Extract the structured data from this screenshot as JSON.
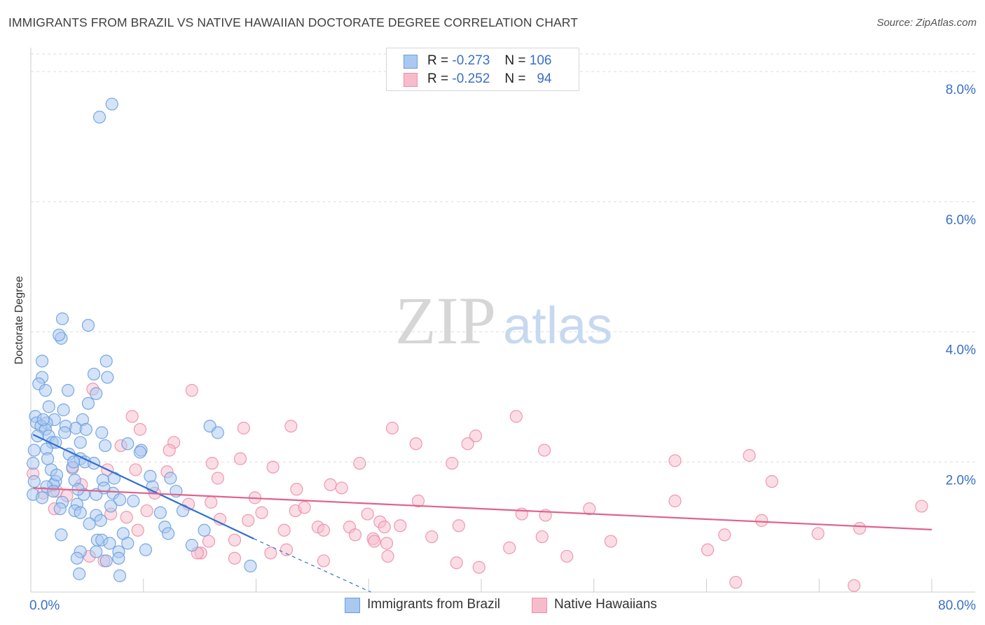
{
  "title": "IMMIGRANTS FROM BRAZIL VS NATIVE HAWAIIAN DOCTORATE DEGREE CORRELATION CHART",
  "source": "Source: ZipAtlas.com",
  "watermark": {
    "zip": "ZIP",
    "atlas": "atlas"
  },
  "legend": {
    "series1": {
      "r_label": "R =",
      "r_value": "-0.273",
      "n_label": "N =",
      "n_value": "106"
    },
    "series2": {
      "r_label": "R =",
      "r_value": "-0.252",
      "n_label": "N =",
      "n_value": "94"
    }
  },
  "colors": {
    "blue_fill": "#aac8f0",
    "blue_stroke": "#6a9ee0",
    "blue_line": "#2f6fd0",
    "pink_fill": "#f7bccb",
    "pink_stroke": "#ec8fa8",
    "pink_line": "#e0628a",
    "axis_text": "#3a6fc8",
    "grid": "#dddddd"
  },
  "chart_data": {
    "type": "scatter",
    "title": "IMMIGRANTS FROM BRAZIL VS NATIVE HAWAIIAN DOCTORATE DEGREE CORRELATION CHART",
    "xlabel": "",
    "ylabel": "Doctorate Degree",
    "xlim": [
      0,
      80
    ],
    "ylim": [
      0,
      8.4
    ],
    "x_tick_labels": [
      "0.0%",
      "80.0%"
    ],
    "y_ticks": [
      2,
      4,
      6,
      8
    ],
    "y_tick_labels": [
      "2.0%",
      "4.0%",
      "6.0%",
      "8.0%"
    ],
    "grid": true,
    "legend_position": "top-center",
    "series": [
      {
        "name": "Immigrants from Brazil",
        "color": "blue",
        "trend": {
          "x0": 0.2,
          "y0": 2.42,
          "x1": 19.8,
          "y1": 0.82,
          "dash_x1": 30.2,
          "dash_y1": 0.0
        },
        "points": [
          [
            7.2,
            7.5
          ],
          [
            6.1,
            7.3
          ],
          [
            2.8,
            4.2
          ],
          [
            5.1,
            4.1
          ],
          [
            2.7,
            3.9
          ],
          [
            2.5,
            3.95
          ],
          [
            1.0,
            3.55
          ],
          [
            6.7,
            3.55
          ],
          [
            5.6,
            3.35
          ],
          [
            1.0,
            3.3
          ],
          [
            6.8,
            3.3
          ],
          [
            0.7,
            3.2
          ],
          [
            1.3,
            3.1
          ],
          [
            3.3,
            3.1
          ],
          [
            5.8,
            3.05
          ],
          [
            5.1,
            2.9
          ],
          [
            1.6,
            2.85
          ],
          [
            2.9,
            2.8
          ],
          [
            0.4,
            2.7
          ],
          [
            2.1,
            2.65
          ],
          [
            4.6,
            2.65
          ],
          [
            0.5,
            2.6
          ],
          [
            1.4,
            2.6
          ],
          [
            0.9,
            2.55
          ],
          [
            1.3,
            2.5
          ],
          [
            3.1,
            2.55
          ],
          [
            4.0,
            2.52
          ],
          [
            4.9,
            2.5
          ],
          [
            6.3,
            2.45
          ],
          [
            15.9,
            2.55
          ],
          [
            16.6,
            2.45
          ],
          [
            0.6,
            2.4
          ],
          [
            1.6,
            2.4
          ],
          [
            1.9,
            2.3
          ],
          [
            2.2,
            2.3
          ],
          [
            4.4,
            2.3
          ],
          [
            6.6,
            2.25
          ],
          [
            8.6,
            2.28
          ],
          [
            1.4,
            2.2
          ],
          [
            0.3,
            2.18
          ],
          [
            9.8,
            2.18
          ],
          [
            9.7,
            2.15
          ],
          [
            3.4,
            2.12
          ],
          [
            1.5,
            2.05
          ],
          [
            4.4,
            2.05
          ],
          [
            4.8,
            2.0
          ],
          [
            5.6,
            1.98
          ],
          [
            0.2,
            1.98
          ],
          [
            3.7,
            1.92
          ],
          [
            1.8,
            1.88
          ],
          [
            6.4,
            1.72
          ],
          [
            10.6,
            1.78
          ],
          [
            12.4,
            1.75
          ],
          [
            7.4,
            1.75
          ],
          [
            2.2,
            1.7
          ],
          [
            3.9,
            1.72
          ],
          [
            2.0,
            1.65
          ],
          [
            1.4,
            1.62
          ],
          [
            10.8,
            1.62
          ],
          [
            7.3,
            1.52
          ],
          [
            0.2,
            1.5
          ],
          [
            4.7,
            1.5
          ],
          [
            5.8,
            1.5
          ],
          [
            1.0,
            1.45
          ],
          [
            7.9,
            1.42
          ],
          [
            2.8,
            1.38
          ],
          [
            4.1,
            1.35
          ],
          [
            7.1,
            1.32
          ],
          [
            2.6,
            1.28
          ],
          [
            3.9,
            1.25
          ],
          [
            4.4,
            1.22
          ],
          [
            11.5,
            1.22
          ],
          [
            13.5,
            1.25
          ],
          [
            5.8,
            1.18
          ],
          [
            6.2,
            1.1
          ],
          [
            5.2,
            1.05
          ],
          [
            11.9,
            1.0
          ],
          [
            15.4,
            0.95
          ],
          [
            8.2,
            0.9
          ],
          [
            12.2,
            0.9
          ],
          [
            2.7,
            0.88
          ],
          [
            5.9,
            0.8
          ],
          [
            6.3,
            0.8
          ],
          [
            7.0,
            0.75
          ],
          [
            8.6,
            0.75
          ],
          [
            14.3,
            0.72
          ],
          [
            4.4,
            0.62
          ],
          [
            5.8,
            0.62
          ],
          [
            7.8,
            0.62
          ],
          [
            10.2,
            0.65
          ],
          [
            4.1,
            0.52
          ],
          [
            6.7,
            0.48
          ],
          [
            7.8,
            0.52
          ],
          [
            19.5,
            0.4
          ],
          [
            4.3,
            0.28
          ],
          [
            7.9,
            0.25
          ],
          [
            0.3,
            1.7
          ],
          [
            2.3,
            1.8
          ],
          [
            3.8,
            2.0
          ],
          [
            6.5,
            1.6
          ],
          [
            9.1,
            1.4
          ],
          [
            12.9,
            1.55
          ],
          [
            2.0,
            1.55
          ],
          [
            3.0,
            2.45
          ],
          [
            1.1,
            2.65
          ],
          [
            4.2,
            1.58
          ]
        ]
      },
      {
        "name": "Native Hawaiians",
        "color": "pink",
        "trend": {
          "x0": 0.2,
          "y0": 1.6,
          "x1": 80.0,
          "y1": 0.96
        },
        "points": [
          [
            0.2,
            1.82
          ],
          [
            5.5,
            3.12
          ],
          [
            14.3,
            3.1
          ],
          [
            9.0,
            2.7
          ],
          [
            43.1,
            2.7
          ],
          [
            23.1,
            2.55
          ],
          [
            18.9,
            2.52
          ],
          [
            32.1,
            2.52
          ],
          [
            9.7,
            2.5
          ],
          [
            39.5,
            2.4
          ],
          [
            12.7,
            2.3
          ],
          [
            34.2,
            2.28
          ],
          [
            38.8,
            2.28
          ],
          [
            8.0,
            2.25
          ],
          [
            12.3,
            2.18
          ],
          [
            45.6,
            2.18
          ],
          [
            63.8,
            2.1
          ],
          [
            18.6,
            2.05
          ],
          [
            57.2,
            2.02
          ],
          [
            16.1,
            1.98
          ],
          [
            29.2,
            1.98
          ],
          [
            37.4,
            1.98
          ],
          [
            21.5,
            1.92
          ],
          [
            6.8,
            1.88
          ],
          [
            9.3,
            1.88
          ],
          [
            12.1,
            1.85
          ],
          [
            3.7,
            1.9
          ],
          [
            16.6,
            1.75
          ],
          [
            65.8,
            1.7
          ],
          [
            26.6,
            1.65
          ],
          [
            27.6,
            1.6
          ],
          [
            23.6,
            1.58
          ],
          [
            2.3,
            1.55
          ],
          [
            1.1,
            1.52
          ],
          [
            3.2,
            1.48
          ],
          [
            34.4,
            1.4
          ],
          [
            57.2,
            1.4
          ],
          [
            16.0,
            1.38
          ],
          [
            14.0,
            1.35
          ],
          [
            79.1,
            1.32
          ],
          [
            2.1,
            1.28
          ],
          [
            23.5,
            1.25
          ],
          [
            10.3,
            1.25
          ],
          [
            49.6,
            1.28
          ],
          [
            20.5,
            1.22
          ],
          [
            43.6,
            1.2
          ],
          [
            45.7,
            1.18
          ],
          [
            8.5,
            1.15
          ],
          [
            16.8,
            1.12
          ],
          [
            19.3,
            1.1
          ],
          [
            64.9,
            1.1
          ],
          [
            31.0,
            1.08
          ],
          [
            31.4,
            1.0
          ],
          [
            32.8,
            1.02
          ],
          [
            38.0,
            1.02
          ],
          [
            25.5,
            1.0
          ],
          [
            28.3,
            1.0
          ],
          [
            26.0,
            0.95
          ],
          [
            9.5,
            0.95
          ],
          [
            22.5,
            0.95
          ],
          [
            61.6,
            0.88
          ],
          [
            73.6,
            0.98
          ],
          [
            69.9,
            0.9
          ],
          [
            28.8,
            0.88
          ],
          [
            35.6,
            0.85
          ],
          [
            30.4,
            0.82
          ],
          [
            45.4,
            0.85
          ],
          [
            15.8,
            0.78
          ],
          [
            18.1,
            0.8
          ],
          [
            51.5,
            0.78
          ],
          [
            30.5,
            0.78
          ],
          [
            31.6,
            0.75
          ],
          [
            42.5,
            0.68
          ],
          [
            60.1,
            0.65
          ],
          [
            22.7,
            0.65
          ],
          [
            15.1,
            0.6
          ],
          [
            14.8,
            0.6
          ],
          [
            21.3,
            0.6
          ],
          [
            47.6,
            0.55
          ],
          [
            31.7,
            0.55
          ],
          [
            18.1,
            0.52
          ],
          [
            26.0,
            0.48
          ],
          [
            6.5,
            0.48
          ],
          [
            5.2,
            0.55
          ],
          [
            37.8,
            0.45
          ],
          [
            39.8,
            0.38
          ],
          [
            62.6,
            0.15
          ],
          [
            73.1,
            0.1
          ],
          [
            4.5,
            1.65
          ],
          [
            7.1,
            1.2
          ],
          [
            11.0,
            1.52
          ],
          [
            19.9,
            1.45
          ],
          [
            24.3,
            1.3
          ],
          [
            29.9,
            1.2
          ]
        ]
      }
    ]
  },
  "bottom_legend": {
    "series1_label": "Immigrants from Brazil",
    "series2_label": "Native Hawaiians"
  }
}
